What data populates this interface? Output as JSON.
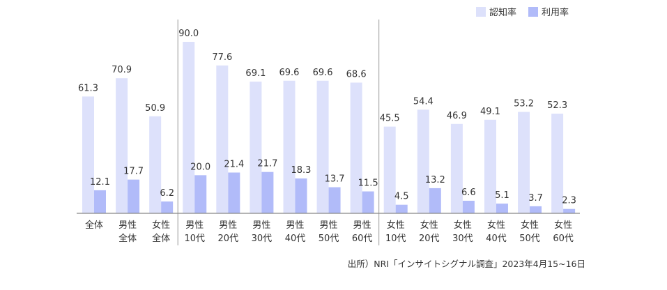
{
  "chart_data": {
    "type": "bar",
    "categories": [
      [
        "全体"
      ],
      [
        "男性",
        "全体"
      ],
      [
        "女性",
        "全体"
      ],
      [
        "男性",
        "10代"
      ],
      [
        "男性",
        "20代"
      ],
      [
        "男性",
        "30代"
      ],
      [
        "男性",
        "40代"
      ],
      [
        "男性",
        "50代"
      ],
      [
        "男性",
        "60代"
      ],
      [
        "女性",
        "10代"
      ],
      [
        "女性",
        "20代"
      ],
      [
        "女性",
        "30代"
      ],
      [
        "女性",
        "40代"
      ],
      [
        "女性",
        "50代"
      ],
      [
        "女性",
        "60代"
      ]
    ],
    "series": [
      {
        "name": "認知率",
        "color": "#dde1fb",
        "values": [
          61.3,
          70.9,
          50.9,
          90.0,
          77.6,
          69.1,
          69.6,
          69.6,
          68.6,
          45.5,
          54.4,
          46.9,
          49.1,
          53.2,
          52.3
        ]
      },
      {
        "name": "利用率",
        "color": "#b1bbf9",
        "values": [
          12.1,
          17.7,
          6.2,
          20.0,
          21.4,
          21.7,
          18.3,
          13.7,
          11.5,
          4.5,
          13.2,
          6.6,
          5.1,
          3.7,
          2.3
        ]
      }
    ],
    "ylim": [
      0,
      90
    ],
    "grid": false,
    "legend": "top-right",
    "group_dividers_after": [
      3,
      9
    ],
    "source": "出所）NRI「インサイトシグナル調査」2023年4月15~16日"
  }
}
